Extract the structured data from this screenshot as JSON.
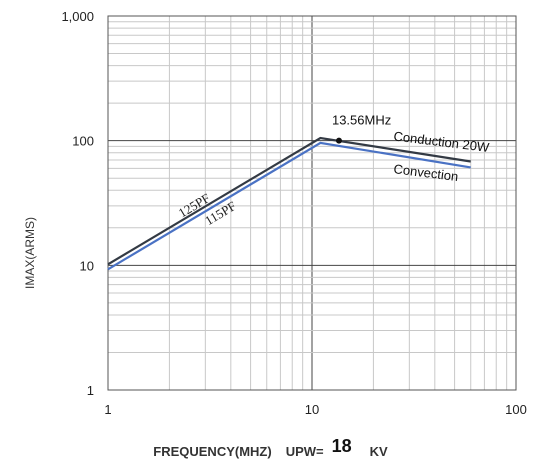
{
  "chart_data": {
    "type": "line",
    "x_scale": "log",
    "y_scale": "log",
    "xlim": [
      1,
      100
    ],
    "ylim": [
      1,
      1000
    ],
    "x_ticks": [
      "1",
      "10",
      "100"
    ],
    "y_ticks": [
      "1",
      "10",
      "100",
      "1,000"
    ],
    "ylabel": "IMAX(ARMS)",
    "xlabel": "FREQUENCY(MHZ)",
    "series": [
      {
        "name": "Conduction 20W",
        "color": "#333a44",
        "x": [
          1,
          11,
          60
        ],
        "y": [
          10.2,
          105,
          68
        ]
      },
      {
        "name": "Convection",
        "color": "#4a72c4",
        "x": [
          1,
          11,
          60
        ],
        "y": [
          9.3,
          96,
          61
        ]
      }
    ],
    "annotations": {
      "marker_label": "13.56MHz",
      "marker_x": 13.56,
      "marker_y": 100,
      "cap_upper": "125PF",
      "cap_lower": "115PF"
    },
    "grid": true
  },
  "footer": {
    "xlabel": "FREQUENCY(MHZ)",
    "upw_label": "UPW=",
    "upw_value": "18",
    "kv_label": "KV"
  }
}
